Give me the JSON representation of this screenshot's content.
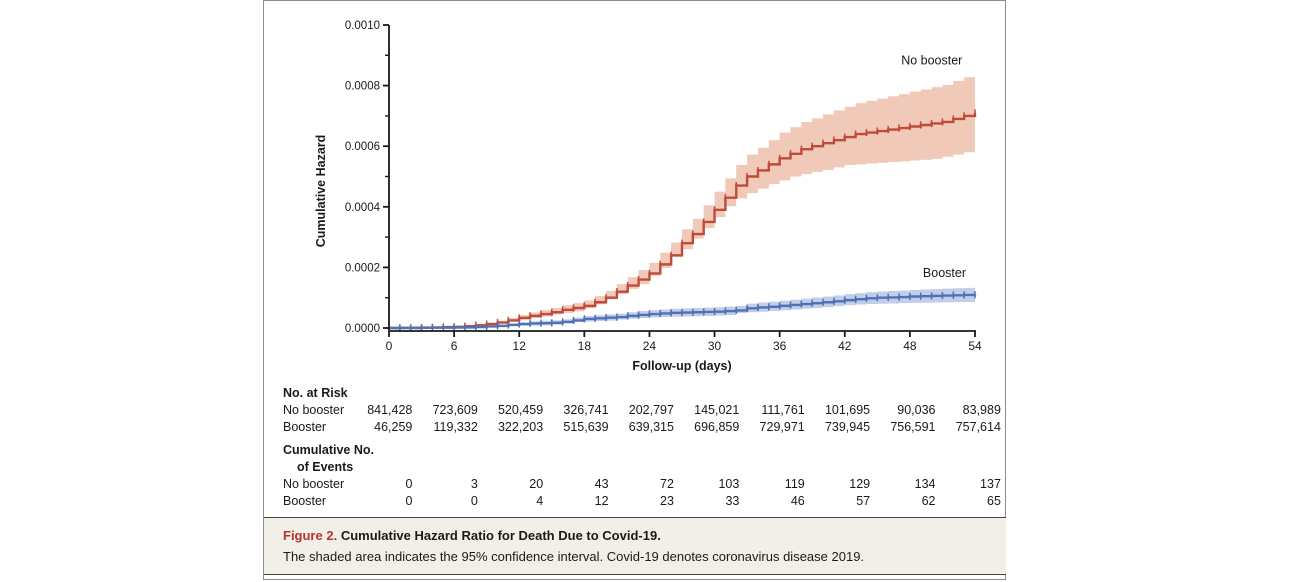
{
  "figure": {
    "caption": {
      "label": "Figure 2.",
      "title": "Cumulative Hazard Ratio for Death Due to Covid-19.",
      "body": "The shaded area indicates the 95% confidence interval. Covid-19 denotes coronavirus disease 2019.",
      "label_color": "#b5362e",
      "panel_bg": "#f2efe8"
    },
    "risk_table": {
      "heading": "No. at Risk",
      "rows": [
        {
          "label": "No booster",
          "values": [
            "841,428",
            "723,609",
            "520,459",
            "326,741",
            "202,797",
            "145,021",
            "111,761",
            "101,695",
            "90,036",
            "83,989"
          ]
        },
        {
          "label": "Booster",
          "values": [
            "46,259",
            "119,332",
            "322,203",
            "515,639",
            "639,315",
            "696,859",
            "729,971",
            "739,945",
            "756,591",
            "757,614"
          ]
        }
      ]
    },
    "events_table": {
      "heading_line1": "Cumulative No.",
      "heading_line2": "of Events",
      "rows": [
        {
          "label": "No booster",
          "values": [
            "0",
            "3",
            "20",
            "43",
            "72",
            "103",
            "119",
            "129",
            "134",
            "137"
          ]
        },
        {
          "label": "Booster",
          "values": [
            "0",
            "0",
            "4",
            "12",
            "23",
            "33",
            "46",
            "57",
            "62",
            "65"
          ]
        }
      ]
    }
  },
  "chart_data": {
    "type": "line",
    "subtype": "step-cumulative-hazard with 95% CI bands and censoring tick marks",
    "title": "",
    "xlabel": "Follow-up (days)",
    "ylabel": "Cumulative Hazard",
    "xlim": [
      0,
      54
    ],
    "ylim": [
      0,
      0.001
    ],
    "grid": false,
    "xticks": [
      "0",
      "6",
      "12",
      "18",
      "24",
      "30",
      "36",
      "42",
      "48",
      "54"
    ],
    "yticks": [
      "0.0000",
      "0.0002",
      "0.0004",
      "0.0006",
      "0.0008",
      "0.0010"
    ],
    "axis_color": "#1a1a1a",
    "x_start": 0,
    "x_step_days": 1,
    "y_unit_multiplier": 1e-06,
    "series": [
      {
        "name": "No booster",
        "color": "#bf4b3b",
        "band_color": "#f1c9b9",
        "label_pos": {
          "day": 47.2,
          "value_micro": 870
        },
        "values_micro": [
          0,
          0.5,
          1,
          1.5,
          2,
          3,
          4,
          6,
          9,
          13,
          18,
          25,
          33,
          40,
          46,
          52,
          60,
          66,
          73,
          85,
          100,
          120,
          140,
          160,
          180,
          210,
          240,
          280,
          310,
          350,
          390,
          430,
          470,
          500,
          520,
          540,
          560,
          575,
          590,
          600,
          610,
          620,
          630,
          640,
          645,
          650,
          655,
          660,
          665,
          670,
          675,
          680,
          690,
          700,
          710
        ],
        "ci_half_width_micro": [
          1,
          1,
          1,
          1.5,
          2,
          2,
          2.5,
          3,
          4,
          5,
          6,
          8,
          10,
          11,
          13,
          14,
          15,
          16,
          18,
          20,
          22,
          25,
          28,
          31,
          35,
          38,
          42,
          46,
          50,
          55,
          60,
          64,
          68,
          72,
          75,
          80,
          85,
          88,
          90,
          92,
          95,
          98,
          100,
          102,
          105,
          107,
          110,
          112,
          115,
          117,
          120,
          122,
          125,
          128,
          130
        ]
      },
      {
        "name": "Booster",
        "color": "#4f72b5",
        "band_color": "#c2cde9",
        "label_pos": {
          "day": 49.2,
          "value_micro": 168
        },
        "values_micro": [
          0,
          0,
          0,
          0.5,
          1,
          1,
          1.5,
          2,
          3,
          5,
          7,
          10,
          13,
          15,
          16,
          17,
          20,
          25,
          30,
          32,
          34,
          36,
          40,
          43,
          46,
          48,
          50,
          51,
          52,
          53,
          54,
          56,
          58,
          65,
          68,
          70,
          73,
          76,
          79,
          82,
          85,
          88,
          92,
          95,
          98,
          100,
          101,
          102,
          104,
          105,
          106,
          107,
          108,
          109,
          110
        ],
        "ci_half_width_micro": [
          0.5,
          0.5,
          0.5,
          1,
          1,
          1,
          1.5,
          1.5,
          2,
          3,
          3.5,
          5,
          6,
          7,
          8,
          8.5,
          9,
          9.5,
          10,
          10.5,
          11,
          11.5,
          12,
          12.5,
          13,
          13.2,
          13.5,
          13.7,
          14,
          14.2,
          14.5,
          14.7,
          15,
          15.5,
          16,
          16.5,
          17,
          17.5,
          18,
          18.5,
          19,
          19.3,
          19.6,
          20,
          20.3,
          20.6,
          21,
          21.3,
          21.6,
          22,
          22.5,
          23,
          23.3,
          23.6,
          24
        ]
      }
    ]
  }
}
